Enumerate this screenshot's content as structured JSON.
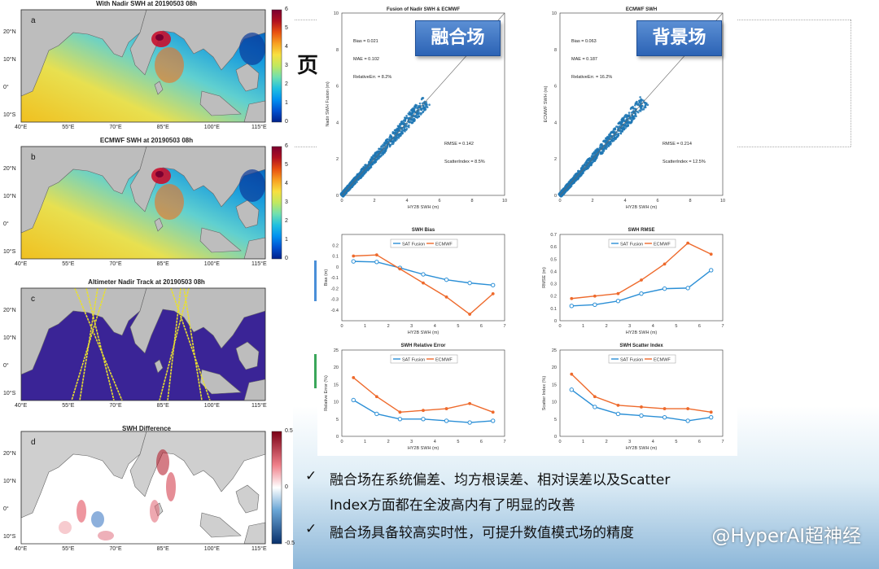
{
  "maps": [
    {
      "letter": "a",
      "title": "With Nadir SWH at 20190503 08h",
      "colorbar": [
        "6",
        "5",
        "4",
        "3",
        "2",
        "1",
        "0"
      ]
    },
    {
      "letter": "b",
      "title": "ECMWF SWH at 20190503 08h",
      "colorbar": [
        "6",
        "5",
        "4",
        "3",
        "2",
        "1",
        "0"
      ]
    },
    {
      "letter": "c",
      "title": "Altimeter Nadir Track at 20190503 08h",
      "colorbar": []
    },
    {
      "letter": "d",
      "title": "SWH Difference",
      "colorbar": [
        "0.5",
        "0",
        "-0.5"
      ]
    }
  ],
  "map_axes": {
    "lon": [
      "40°E",
      "55°E",
      "70°E",
      "85°E",
      "100°E",
      "115°E"
    ],
    "lat": [
      "20°N",
      "10°N",
      "0°",
      "10°S"
    ]
  },
  "scatter_left": {
    "title": "Fusion of Nadir SWH & ECMWF",
    "xlabel": "HY2B SWH (m)",
    "ylabel": "Nadir SWH Fusion (m)",
    "badge": "融合场",
    "stats": {
      "bias": "Bias = 0.021",
      "mae": "MAE = 0.102",
      "rel": "RelativeErr. = 8.2%",
      "rmse": "RMSE = 0.142",
      "si": "ScatterIndex = 8.5%"
    }
  },
  "scatter_right": {
    "title": "ECMWF SWH",
    "xlabel": "HY2B SWH (m)",
    "ylabel": "ECMWF SWH (m)",
    "badge": "背景场",
    "stats": {
      "bias": "Bias = 0.063",
      "mae": "MAE = 0.187",
      "rel": "RelativeErr. = 16.2%",
      "rmse": "RMSE = 0.214",
      "si": "ScatterIndex = 12.5%"
    }
  },
  "scatter_ticks": [
    "0",
    "2",
    "4",
    "6",
    "8",
    "10"
  ],
  "legend": {
    "fusion": "SAT Fusion",
    "ecmwf": "ECMWF"
  },
  "colors": {
    "fusion": "#2b8fd6",
    "ecmwf": "#ee6a2c",
    "badge": "#3a73c4",
    "scatter": "#1f77b4"
  },
  "stray_char": "页",
  "chart_data": [
    {
      "type": "line",
      "title": "SWH Bias",
      "xlabel": "HY2B SWH (m)",
      "ylabel": "Bias (m)",
      "ylim": [
        -0.5,
        0.3
      ],
      "xlim": [
        0,
        7
      ],
      "yticks": [
        "0.2",
        "0.1",
        "0",
        "-0.1",
        "-0.2",
        "-0.3",
        "-0.4"
      ],
      "xticks": [
        "0",
        "1",
        "2",
        "3",
        "4",
        "5",
        "6",
        "7"
      ],
      "x": [
        0.5,
        1.5,
        2.5,
        3.5,
        4.5,
        5.5,
        6.5
      ],
      "series": [
        {
          "name": "SAT Fusion",
          "values": [
            0.05,
            0.045,
            -0.01,
            -0.07,
            -0.12,
            -0.15,
            -0.17
          ]
        },
        {
          "name": "ECMWF",
          "values": [
            0.1,
            0.11,
            -0.02,
            -0.15,
            -0.28,
            -0.44,
            -0.25
          ]
        }
      ]
    },
    {
      "type": "line",
      "title": "SWH RMSE",
      "xlabel": "HY2B SWH (m)",
      "ylabel": "RMSE (m)",
      "ylim": [
        0,
        0.7
      ],
      "xlim": [
        0,
        7
      ],
      "yticks": [
        "0.7",
        "0.6",
        "0.5",
        "0.4",
        "0.3",
        "0.2",
        "0.1",
        "0"
      ],
      "xticks": [
        "0",
        "1",
        "2",
        "3",
        "4",
        "5",
        "6",
        "7"
      ],
      "x": [
        0.5,
        1.5,
        2.5,
        3.5,
        4.5,
        5.5,
        6.5
      ],
      "series": [
        {
          "name": "SAT Fusion",
          "values": [
            0.12,
            0.13,
            0.16,
            0.22,
            0.26,
            0.265,
            0.41
          ]
        },
        {
          "name": "ECMWF",
          "values": [
            0.18,
            0.2,
            0.22,
            0.33,
            0.46,
            0.63,
            0.54
          ]
        }
      ]
    },
    {
      "type": "line",
      "title": "SWH Relative Error",
      "xlabel": "HY2B SWH (m)",
      "ylabel": "Relative Error (%)",
      "ylim": [
        0,
        25
      ],
      "xlim": [
        0,
        7
      ],
      "yticks": [
        "25",
        "20",
        "15",
        "10",
        "5",
        "0"
      ],
      "xticks": [
        "0",
        "1",
        "2",
        "3",
        "4",
        "5",
        "6",
        "7"
      ],
      "x": [
        0.5,
        1.5,
        2.5,
        3.5,
        4.5,
        5.5,
        6.5
      ],
      "series": [
        {
          "name": "SAT Fusion",
          "values": [
            10.5,
            6.5,
            5,
            5,
            4.5,
            4,
            4.5
          ]
        },
        {
          "name": "ECMWF",
          "values": [
            17,
            11.5,
            7,
            7.5,
            8,
            9.5,
            7
          ]
        }
      ]
    },
    {
      "type": "line",
      "title": "SWH Scatter Index",
      "xlabel": "HY2B SWH (m)",
      "ylabel": "Scatter Index (%)",
      "ylim": [
        0,
        25
      ],
      "xlim": [
        0,
        7
      ],
      "yticks": [
        "25",
        "20",
        "15",
        "10",
        "5",
        "0"
      ],
      "xticks": [
        "0",
        "1",
        "2",
        "3",
        "4",
        "5",
        "6",
        "7"
      ],
      "x": [
        0.5,
        1.5,
        2.5,
        3.5,
        4.5,
        5.5,
        6.5
      ],
      "series": [
        {
          "name": "SAT Fusion",
          "values": [
            13.5,
            8.5,
            6.5,
            6,
            5.5,
            4.5,
            5.5
          ]
        },
        {
          "name": "ECMWF",
          "values": [
            18,
            11.5,
            9,
            8.5,
            8,
            8,
            7
          ]
        }
      ]
    }
  ],
  "bullets": [
    "融合场在系统偏差、均方根误差、相对误差以及Scatter",
    "Index方面都在全波高内有了明显的改善",
    "融合场具备较高实时性，可提升数值模式场的精度"
  ],
  "check": "✓",
  "watermark": "@HyperAI超神经"
}
